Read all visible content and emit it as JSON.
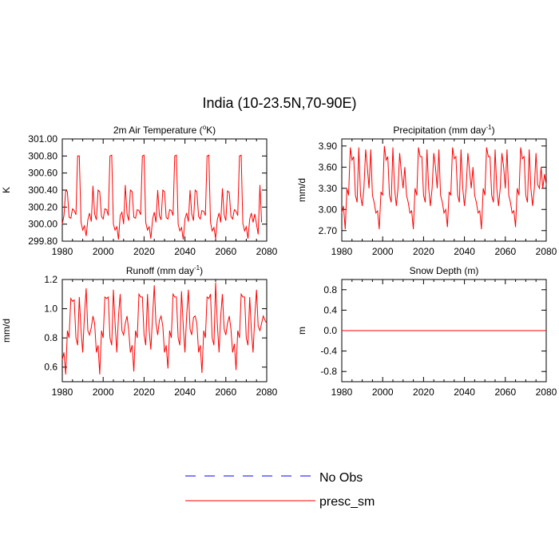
{
  "title": "India (10-23.5N,70-90E)",
  "colors": {
    "model": "#ff0000",
    "obs": "#0000ff",
    "axis": "#000000"
  },
  "legend": [
    {
      "label": "No Obs",
      "style": "dashed",
      "color": "#0000ff"
    },
    {
      "label": "presc_sm",
      "style": "solid",
      "color": "#ff0000"
    }
  ],
  "chart_data": [
    {
      "type": "line",
      "title": "2m Air Temperature (°K)",
      "title_main": "2m Air Temperature (",
      "title_sup": "o",
      "title_tail": "K)",
      "ylabel": "K",
      "xlim": [
        1980,
        2080
      ],
      "ylim": [
        299.8,
        301.0
      ],
      "xticks": [
        "1980",
        "2000",
        "2020",
        "2040",
        "2060",
        "2080"
      ],
      "yticks": [
        {
          "v": 299.8,
          "label": "299.80"
        },
        {
          "v": 300.0,
          "label": "300.00"
        },
        {
          "v": 300.2,
          "label": "300.20"
        },
        {
          "v": 300.4,
          "label": "300.40"
        },
        {
          "v": 300.6,
          "label": "300.60"
        },
        {
          "v": 300.8,
          "label": "300.80"
        },
        {
          "v": 301.0,
          "label": "301.00"
        }
      ],
      "series": [
        {
          "name": "presc_sm",
          "x_start": 1980,
          "x_step": 0.8333,
          "values": [
            300.0,
            300.1,
            300.4,
            300.38,
            300.08,
            300.07,
            300.18,
            300.16,
            300.11,
            300.8,
            300.8,
            300.02,
            299.93,
            299.98,
            299.86,
            300.05,
            300.13,
            300.03,
            300.45,
            300.12,
            300.05,
            300.4,
            300.38,
            300.09,
            300.06,
            300.18,
            300.17,
            300.1,
            300.8,
            300.81,
            300.0,
            299.93,
            299.97,
            299.82,
            300.1,
            300.14,
            300.0,
            300.46,
            300.12,
            300.04,
            300.4,
            300.38,
            300.08,
            300.07,
            300.17,
            300.16,
            300.11,
            300.8,
            300.81,
            300.02,
            299.93,
            299.97,
            299.83,
            300.06,
            300.14,
            300.02,
            300.4,
            300.1,
            300.05,
            300.4,
            300.38,
            300.08,
            300.06,
            300.17,
            300.16,
            300.1,
            300.8,
            300.81,
            300.0,
            299.92,
            299.96,
            299.82,
            300.06,
            300.13,
            300.03,
            300.4,
            300.12,
            300.04,
            300.4,
            300.38,
            300.09,
            300.06,
            300.16,
            300.15,
            300.1,
            300.8,
            300.81,
            300.02,
            299.92,
            299.96,
            299.83,
            300.05,
            300.13,
            300.02,
            300.42,
            300.11,
            300.04,
            300.39,
            300.37,
            300.09,
            300.06,
            300.17,
            300.15,
            300.1,
            300.8,
            300.81,
            300.01,
            299.92,
            299.97,
            299.83,
            300.06,
            300.13,
            300.02,
            300.12,
            300.0,
            299.88,
            300.46,
            300.02
          ]
        }
      ]
    },
    {
      "type": "line",
      "title": "Precipitation (mm day-1)",
      "title_main": "Precipitation (mm day",
      "title_sup": "-1",
      "title_tail": ")",
      "ylabel": "mm/d",
      "xlim": [
        1980,
        2080
      ],
      "ylim": [
        2.55,
        4.0
      ],
      "xticks": [
        "1980",
        "2000",
        "2020",
        "2040",
        "2060",
        "2080"
      ],
      "yticks": [
        {
          "v": 2.7,
          "label": "2.70"
        },
        {
          "v": 3.0,
          "label": "3.00"
        },
        {
          "v": 3.3,
          "label": "3.30"
        },
        {
          "v": 3.6,
          "label": "3.60"
        },
        {
          "v": 3.9,
          "label": "3.90"
        }
      ],
      "series": [
        {
          "name": "presc_sm",
          "x_start": 1980,
          "x_step": 0.8333,
          "values": [
            2.95,
            3.05,
            2.72,
            3.3,
            3.2,
            3.88,
            3.7,
            3.75,
            3.2,
            3.1,
            3.88,
            3.2,
            3.05,
            3.3,
            3.85,
            3.6,
            3.3,
            3.85,
            3.2,
            3.1,
            2.95,
            2.98,
            2.72,
            3.25,
            3.2,
            3.9,
            3.7,
            3.75,
            3.2,
            3.1,
            3.88,
            3.3,
            3.05,
            3.3,
            3.8,
            3.5,
            3.3,
            3.6,
            3.2,
            3.1,
            2.95,
            2.98,
            2.72,
            3.3,
            3.2,
            3.88,
            3.75,
            3.75,
            3.2,
            3.1,
            3.85,
            3.3,
            3.05,
            3.3,
            3.8,
            3.6,
            3.3,
            3.85,
            3.2,
            3.1,
            2.95,
            3.0,
            2.75,
            3.25,
            3.2,
            3.88,
            3.72,
            3.75,
            3.2,
            3.1,
            3.85,
            3.3,
            3.05,
            3.3,
            3.8,
            3.55,
            3.3,
            3.6,
            3.2,
            3.1,
            2.95,
            2.98,
            2.72,
            3.3,
            3.2,
            3.88,
            3.75,
            3.75,
            3.2,
            3.1,
            3.85,
            3.3,
            3.05,
            3.3,
            3.8,
            3.6,
            3.3,
            3.85,
            3.2,
            3.1,
            2.95,
            2.98,
            2.75,
            3.3,
            3.2,
            3.88,
            3.72,
            3.75,
            3.2,
            3.1,
            3.85,
            3.3,
            3.05,
            3.3,
            3.8,
            3.35,
            3.3,
            3.6,
            3.3,
            3.5,
            3.35
          ]
        }
      ]
    },
    {
      "type": "line",
      "title": "Runoff (mm day-1)",
      "title_main": "Runoff (mm day",
      "title_sup": "-1",
      "title_tail": ")",
      "ylabel": "mm/d",
      "xlim": [
        1980,
        2080
      ],
      "ylim": [
        0.5,
        1.2
      ],
      "xticks": [
        "1980",
        "2000",
        "2020",
        "2040",
        "2060",
        "2080"
      ],
      "yticks": [
        {
          "v": 0.6,
          "label": "0.6"
        },
        {
          "v": 0.8,
          "label": "0.8"
        },
        {
          "v": 1.0,
          "label": "1.0"
        },
        {
          "v": 1.2,
          "label": "1.2"
        }
      ],
      "series": [
        {
          "name": "presc_sm",
          "x_start": 1980,
          "x_step": 0.8333,
          "values": [
            0.65,
            0.7,
            0.55,
            0.85,
            0.8,
            1.07,
            1.05,
            1.06,
            0.8,
            0.75,
            1.08,
            0.85,
            0.7,
            0.95,
            1.14,
            0.85,
            0.82,
            0.87,
            0.95,
            0.9,
            0.7,
            0.75,
            0.55,
            0.85,
            0.8,
            1.08,
            1.07,
            1.08,
            0.8,
            0.75,
            1.13,
            0.9,
            0.7,
            0.95,
            1.1,
            0.85,
            0.82,
            0.9,
            0.95,
            0.85,
            0.7,
            0.75,
            0.57,
            0.85,
            0.8,
            1.1,
            1.08,
            1.08,
            0.82,
            0.75,
            1.1,
            0.85,
            0.72,
            0.95,
            1.16,
            0.9,
            0.82,
            0.92,
            0.95,
            0.88,
            0.7,
            0.75,
            0.59,
            0.85,
            0.8,
            1.1,
            1.08,
            1.08,
            0.8,
            0.75,
            1.12,
            0.88,
            0.7,
            0.95,
            1.13,
            0.86,
            0.82,
            0.94,
            0.95,
            0.9,
            0.7,
            0.75,
            0.56,
            0.85,
            0.8,
            1.08,
            1.07,
            1.1,
            0.8,
            0.75,
            1.18,
            0.9,
            0.7,
            0.95,
            1.1,
            0.86,
            0.82,
            0.9,
            0.95,
            0.86,
            0.7,
            0.76,
            0.58,
            0.85,
            0.8,
            1.1,
            1.08,
            1.08,
            0.8,
            0.75,
            1.08,
            0.85,
            0.7,
            0.95,
            1.13,
            0.88,
            0.85,
            0.9,
            0.95,
            0.92,
            0.9
          ]
        }
      ]
    },
    {
      "type": "line",
      "title": "Snow Depth (m)",
      "title_main": "Snow Depth (m)",
      "title_sup": "",
      "title_tail": "",
      "ylabel": "m",
      "xlim": [
        1980,
        2080
      ],
      "ylim": [
        -1.0,
        1.0
      ],
      "xticks": [
        "1980",
        "2000",
        "2020",
        "2040",
        "2060",
        "2080"
      ],
      "yticks": [
        {
          "v": -0.8,
          "label": "-0.8"
        },
        {
          "v": -0.4,
          "label": "-0.4"
        },
        {
          "v": 0.0,
          "label": "0.0"
        },
        {
          "v": 0.4,
          "label": "0.4"
        },
        {
          "v": 0.8,
          "label": "0.8"
        }
      ],
      "series": [
        {
          "name": "presc_sm",
          "x_start": 1980,
          "x_step": 100,
          "values": [
            0.0,
            0.0
          ]
        }
      ]
    }
  ]
}
